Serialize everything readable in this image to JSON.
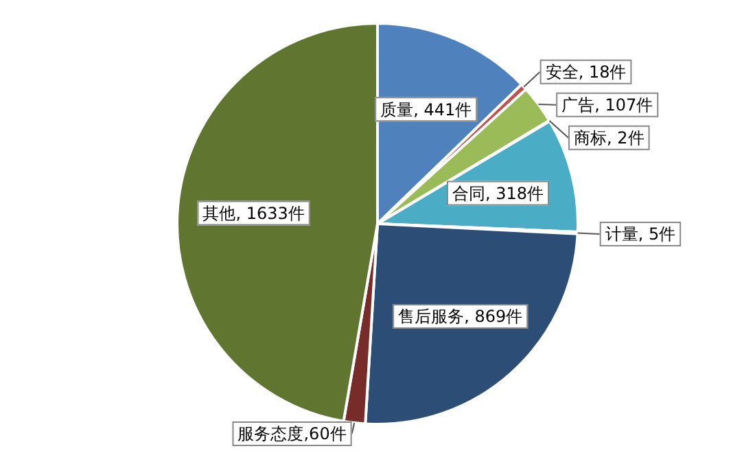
{
  "chart_data": {
    "type": "pie",
    "categories": [
      "质量",
      "安全",
      "广告",
      "商标",
      "合同",
      "计量",
      "售后服务",
      "服务态度",
      "其他"
    ],
    "values": [
      441,
      18,
      107,
      2,
      318,
      5,
      869,
      60,
      1633
    ],
    "colors": [
      "#4f81bd",
      "#c0504d",
      "#9bbb59",
      "#8064a2",
      "#4bacc6",
      "#f79646",
      "#2c4d75",
      "#772c2a",
      "#5f7530"
    ],
    "value_labels": [
      ", 441件",
      ", 18件",
      ", 107件",
      ", 2件",
      ", 318件",
      ", 5件",
      ", 869件",
      ",60件",
      ", 1633件"
    ],
    "legend": false
  }
}
